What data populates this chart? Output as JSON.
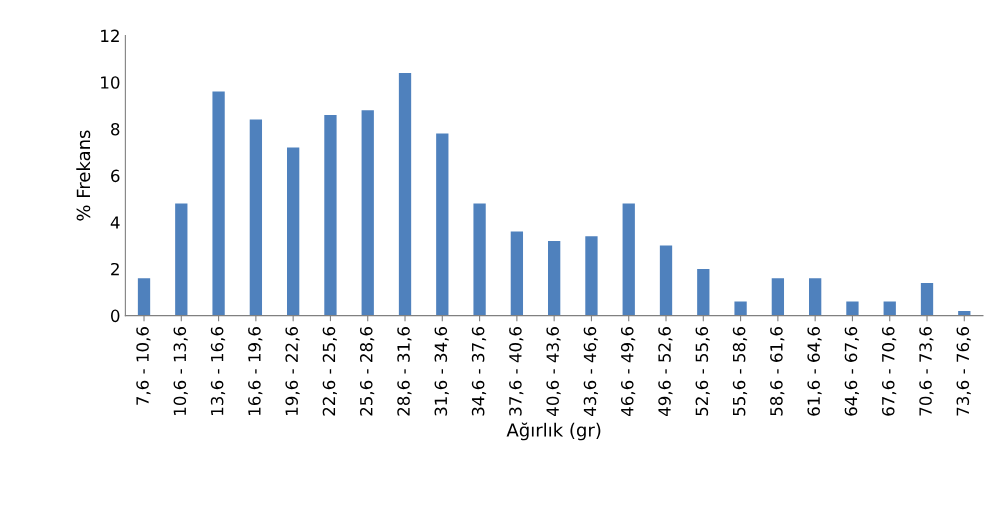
{
  "chart_data": {
    "type": "bar",
    "xlabel": "Ağırlık (gr)",
    "ylabel": "% Frekans",
    "categories": [
      "7,6 - 10,6",
      "10,6 - 13,6",
      "13,6 - 16,6",
      "16,6 - 19,6",
      "19,6 - 22,6",
      "22,6 - 25,6",
      "25,6 - 28,6",
      "28,6 - 31,6",
      "31,6 - 34,6",
      "34,6 - 37,6",
      "37,6 - 40,6",
      "40,6 - 43,6",
      "43,6 - 46,6",
      "46,6 - 49,6",
      "49,6 - 52,6",
      "52,6 - 55,6",
      "55,6 - 58,6",
      "58,6 - 61,6",
      "61,6 - 64,6",
      "64,6 - 67,6",
      "67,6 - 70,6",
      "70,6 - 73,6",
      "73,6 - 76,6"
    ],
    "values": [
      1.6,
      4.8,
      9.6,
      8.4,
      7.2,
      8.6,
      8.8,
      10.4,
      7.8,
      4.8,
      3.6,
      3.2,
      3.4,
      4.8,
      3.0,
      2.0,
      0.6,
      1.6,
      1.6,
      0.6,
      0.6,
      1.4,
      0.2
    ],
    "color": "#4f81bd",
    "ylim": [
      0,
      12
    ],
    "yticks": [
      0,
      2,
      4,
      6,
      8,
      10,
      12
    ],
    "grid": false,
    "legend": false
  }
}
